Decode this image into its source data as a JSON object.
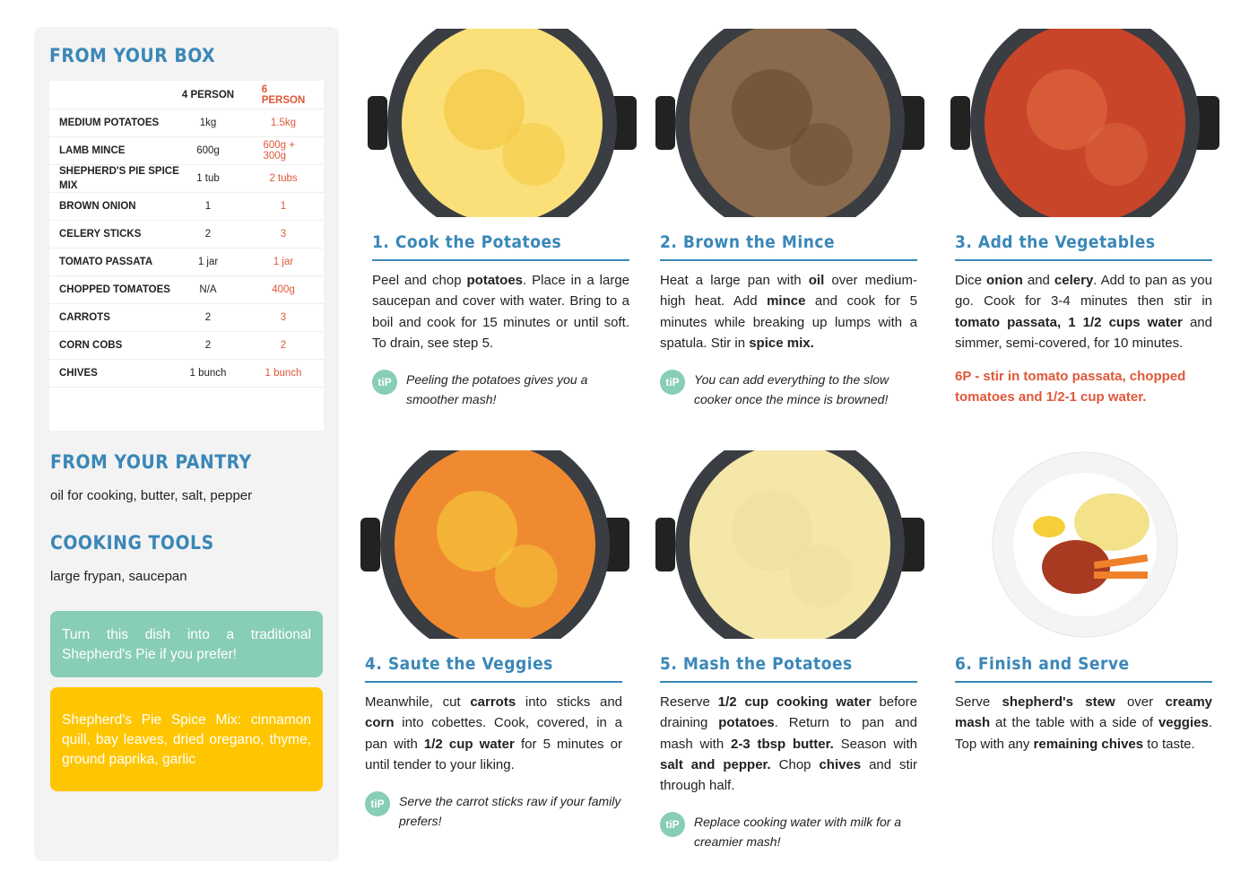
{
  "sidebar": {
    "box_title": "FROM YOUR BOX",
    "table": {
      "columns": [
        "4 PERSON",
        "6 PERSON"
      ],
      "rows": [
        [
          "MEDIUM POTATOES",
          "1kg",
          "1.5kg"
        ],
        [
          "LAMB MINCE",
          "600g",
          "600g + 300g"
        ],
        [
          "SHEPHERD'S PIE SPICE MIX",
          "1 tub",
          "2 tubs"
        ],
        [
          "BROWN ONION",
          "1",
          "1"
        ],
        [
          "CELERY STICKS",
          "2",
          "3"
        ],
        [
          "TOMATO PASSATA",
          "1 jar",
          "1 jar"
        ],
        [
          "CHOPPED TOMATOES",
          "N/A",
          "400g"
        ],
        [
          "CARROTS",
          "2",
          "3"
        ],
        [
          "CORN COBS",
          "2",
          "2"
        ],
        [
          "CHIVES",
          "1 bunch",
          "1 bunch"
        ]
      ]
    },
    "pantry": {
      "title": "FROM YOUR PANTRY",
      "text": "oil for cooking, butter, salt, pepper"
    },
    "tools": {
      "title": "COOKING TOOLS",
      "text": "large frypan, saucepan"
    },
    "notes": [
      "Turn this dish into a traditional Shepherd's Pie if you prefer!",
      "Shepherd's Pie Spice Mix: cinnamon quill, bay leaves, dried oregano, thyme, ground paprika, garlic"
    ]
  },
  "steps": [
    {
      "title": "1. Cook the Potatoes",
      "body": [
        {
          "text": "Peel and chop "
        },
        {
          "text": "potatoes",
          "bold": true
        },
        {
          "text": ". Place in a large saucepan and cover with water. Bring to a boil and cook for 15 minutes or until soft. To drain, see step 5."
        }
      ],
      "tip": {
        "label": "tiP",
        "text": "Peeling the potatoes gives you a smoother mash!"
      }
    },
    {
      "title": "2. Brown the Mince",
      "body": [
        {
          "text": "Heat a large pan with "
        },
        {
          "text": "oil",
          "bold": true
        },
        {
          "text": " over medium-high heat. Add "
        },
        {
          "text": "mince",
          "bold": true
        },
        {
          "text": " and cook for 5 minutes while breaking up lumps with a spatula. Stir in "
        },
        {
          "text": "spice mix.",
          "bold": true
        }
      ],
      "tip": {
        "label": "tiP",
        "text": "You can add everything to the slow cooker once the mince is browned!"
      }
    },
    {
      "title": "3. Add the Vegetables",
      "body": [
        {
          "text": "Dice "
        },
        {
          "text": "onion",
          "bold": true
        },
        {
          "text": " and "
        },
        {
          "text": "celery",
          "bold": true
        },
        {
          "text": ". Add to pan as you go. Cook for 3-4 minutes then stir in "
        },
        {
          "text": "tomato passata, 1 1/2 cups water",
          "bold": true
        },
        {
          "text": " and simmer, semi-covered, for 10 minutes."
        }
      ],
      "note": "6P - stir in tomato passata, chopped tomatoes and 1/2-1 cup water."
    },
    {
      "title": "4. Saute the Veggies",
      "body": [
        {
          "text": "Meanwhile, cut "
        },
        {
          "text": "carrots",
          "bold": true
        },
        {
          "text": " into sticks and "
        },
        {
          "text": "corn",
          "bold": true
        },
        {
          "text": " into cobettes. Cook, covered, in a pan with "
        },
        {
          "text": "1/2 cup water",
          "bold": true
        },
        {
          "text": " for 5 minutes or until tender to your liking."
        }
      ],
      "tip": {
        "label": "tiP",
        "text": "Serve the carrot sticks raw if your family prefers!"
      }
    },
    {
      "title": "5. Mash the Potatoes",
      "body": [
        {
          "text": "Reserve "
        },
        {
          "text": "1/2 cup cooking water",
          "bold": true
        },
        {
          "text": " before draining "
        },
        {
          "text": "potatoes",
          "bold": true
        },
        {
          "text": ". Return to pan and mash with "
        },
        {
          "text": "2-3 tbsp butter.",
          "bold": true
        },
        {
          "text": " Season with "
        },
        {
          "text": "salt and pepper.",
          "bold": true
        },
        {
          "text": " Chop "
        },
        {
          "text": "chives",
          "bold": true
        },
        {
          "text": " and stir through half."
        }
      ],
      "tip": {
        "label": "tiP",
        "text": "Replace cooking water with milk for a creamier mash!"
      }
    },
    {
      "title": "6. Finish and Serve",
      "body": [
        {
          "text": "Serve "
        },
        {
          "text": "shepherd's stew",
          "bold": true
        },
        {
          "text": " over "
        },
        {
          "text": "creamy mash",
          "bold": true
        },
        {
          "text": " at the table with a side of "
        },
        {
          "text": "veggies",
          "bold": true
        },
        {
          "text": ". Top with any "
        },
        {
          "text": "remaining chives",
          "bold": true
        },
        {
          "text": " to taste."
        }
      ]
    }
  ]
}
